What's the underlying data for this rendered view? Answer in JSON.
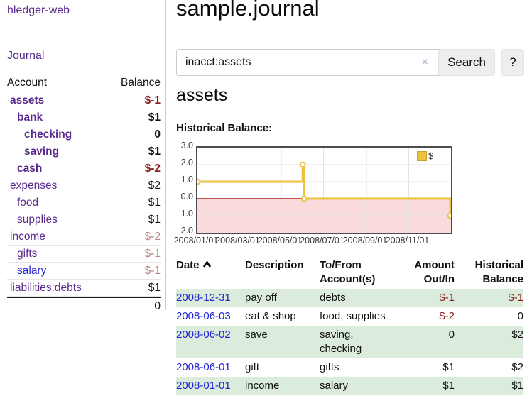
{
  "app": {
    "brand": "hledger-web",
    "nav_journal": "Journal"
  },
  "sidebar": {
    "header": {
      "account": "Account",
      "balance": "Balance"
    },
    "accounts": [
      {
        "name": "assets",
        "depth": 1,
        "bold": true,
        "balance": "$-1",
        "balance_style": "strong-neg",
        "link_blue": false
      },
      {
        "name": "bank",
        "depth": 2,
        "bold": true,
        "balance": "$1",
        "balance_style": "",
        "link_blue": false
      },
      {
        "name": "checking",
        "depth": 3,
        "bold": true,
        "balance": "0",
        "balance_style": "",
        "link_blue": false
      },
      {
        "name": "saving",
        "depth": 3,
        "bold": true,
        "balance": "$1",
        "balance_style": "",
        "link_blue": false
      },
      {
        "name": "cash",
        "depth": 2,
        "bold": true,
        "balance": "$-2",
        "balance_style": "strong-neg",
        "link_blue": false
      },
      {
        "name": "expenses",
        "depth": 1,
        "bold": false,
        "balance": "$2",
        "balance_style": "",
        "link_blue": false
      },
      {
        "name": "food",
        "depth": 2,
        "bold": false,
        "balance": "$1",
        "balance_style": "",
        "link_blue": false
      },
      {
        "name": "supplies",
        "depth": 2,
        "bold": false,
        "balance": "$1",
        "balance_style": "",
        "link_blue": false
      },
      {
        "name": "income",
        "depth": 1,
        "bold": false,
        "balance": "$-2",
        "balance_style": "faded-neg",
        "link_blue": false
      },
      {
        "name": "gifts",
        "depth": 2,
        "bold": false,
        "balance": "$-1",
        "balance_style": "faded-neg",
        "link_blue": false
      },
      {
        "name": "salary",
        "depth": 2,
        "bold": false,
        "balance": "$-1",
        "balance_style": "faded-neg",
        "link_blue": true
      },
      {
        "name": "liabilities:debts",
        "depth": 1,
        "bold": false,
        "balance": "$1",
        "balance_style": "",
        "link_blue": false
      }
    ],
    "total": "0"
  },
  "main": {
    "title": "sample.journal",
    "search": {
      "value": "inacct:assets",
      "clear_label": "×",
      "button": "Search",
      "help": "?"
    },
    "account_heading": "assets",
    "chart_label": "Historical Balance:"
  },
  "chart_data": {
    "type": "line",
    "step": true,
    "title": "Historical Balance",
    "series": [
      {
        "name": "$",
        "points": [
          {
            "date": "2008/01/01",
            "value": 1
          },
          {
            "date": "2008/06/01",
            "value": 2
          },
          {
            "date": "2008/06/03",
            "value": 0
          },
          {
            "date": "2008/12/31",
            "value": -1
          }
        ]
      }
    ],
    "ylim": [
      -2,
      3
    ],
    "yticks": [
      {
        "v": 3,
        "label": "3.0"
      },
      {
        "v": 2,
        "label": "2.0"
      },
      {
        "v": 1,
        "label": "1.0"
      },
      {
        "v": 0,
        "label": "0.0"
      },
      {
        "v": -1,
        "label": "-1.0"
      },
      {
        "v": -2,
        "label": "-2.0"
      }
    ],
    "xrange": [
      "2008/01/01",
      "2009/01/01"
    ],
    "xticks": [
      {
        "date": "2008/01/01",
        "label": "2008/01/01"
      },
      {
        "date": "2008/03/01",
        "label": "2008/03/01"
      },
      {
        "date": "2008/05/01",
        "label": "2008/05/01"
      },
      {
        "date": "2008/07/01",
        "label": "2008/07/01"
      },
      {
        "date": "2008/09/01",
        "label": "2008/09/01"
      },
      {
        "date": "2008/11/01",
        "label": "2008/11/01"
      }
    ],
    "legend": {
      "label": "$",
      "position": "top-right"
    },
    "grid": true,
    "zero_line": true,
    "negative_region_shaded": true
  },
  "table": {
    "headers": {
      "date": "Date",
      "description": "Description",
      "tofrom_line1": "To/From",
      "tofrom_line2": "Account(s)",
      "amount_line1": "Amount",
      "amount_line2": "Out/In",
      "balance_line1": "Historical",
      "balance_line2": "Balance"
    },
    "rows": [
      {
        "date": "2008-12-31",
        "description": "pay off",
        "accounts": "debts",
        "amount": "$-1",
        "amount_neg": true,
        "balance": "$-1",
        "balance_neg": true,
        "green": true
      },
      {
        "date": "2008-06-03",
        "description": "eat & shop",
        "accounts": "food, supplies",
        "amount": "$-2",
        "amount_neg": true,
        "balance": "0",
        "balance_neg": false,
        "green": false
      },
      {
        "date": "2008-06-02",
        "description": "save",
        "accounts": "saving, checking",
        "amount": "0",
        "amount_neg": false,
        "balance": "$2",
        "balance_neg": false,
        "green": true
      },
      {
        "date": "2008-06-01",
        "description": "gift",
        "accounts": "gifts",
        "amount": "$1",
        "amount_neg": false,
        "balance": "$2",
        "balance_neg": false,
        "green": false
      },
      {
        "date": "2008-01-01",
        "description": "income",
        "accounts": "salary",
        "amount": "$1",
        "amount_neg": false,
        "balance": "$1",
        "balance_neg": false,
        "green": true
      }
    ]
  },
  "colors": {
    "purple": "#5a2b8e",
    "blue": "#2323d6",
    "strong_neg": "#8b1c1c",
    "faded_neg": "#b98585",
    "row_green": "#dcecdc",
    "line_gold": "#edc240",
    "legend_border": "#c7a32f",
    "neg_region_pink": "#f9dbdb",
    "zero_line_red": "#a31212",
    "grid_gray": "#e3e3e3",
    "plot_border": "#4d4d4d",
    "button_bg": "#eeeeee"
  }
}
